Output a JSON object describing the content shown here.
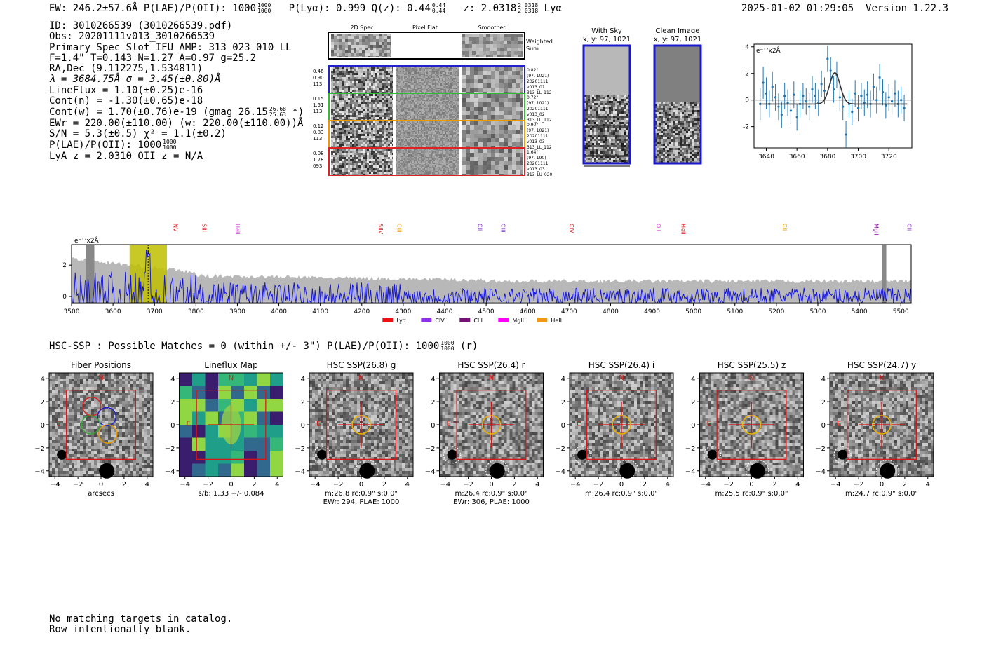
{
  "header": {
    "left_text": "EW: 246.2±57.6Å  P(LAE)/P(OII): 1000",
    "plae_frac": {
      "num": "1000",
      "den": "1000"
    },
    "plya_text": "P(Lyα): 0.999  Q(z): 0.44",
    "qz_frac": {
      "num": "0.44",
      "den": "0.44"
    },
    "z_text": "z: 2.0318",
    "z_frac": {
      "num": "2.0318",
      "den": "2.0318"
    },
    "line_name": "Lyα",
    "timestamp": "2025-01-02 01:29:05",
    "version": "Version 1.22.3"
  },
  "info": {
    "id": "ID: 3010266539 (3010266539.pdf)",
    "obs": "Obs: 20201111v013_3010266539",
    "primary": "Primary Spec_Slot_IFU_AMP: 313_023_010_LL",
    "fit": "F=1.4\"  T=0.143  N=1.27  A=0.97  g=25.2",
    "radec": "RA,Dec (9.112275,1.534811)",
    "lambda": "λ = 3684.75Å  σ = 3.45(±0.80)Å",
    "lineflux": "LineFlux = 1.10(±0.25)e-16",
    "contn": "Cont(n) = -1.30(±0.65)e-18",
    "contw": "Cont(w) = 1.70(±0.76)e-19 (gmag 26.15",
    "contw_frac": {
      "num": "26.68",
      "den": "25.63"
    },
    "contw_end": "*)",
    "ewr": "EWr = 220.00(±110.00) (w: 220.00(±110.00))Å",
    "sn": "S/N = 5.3(±0.5)  χ² = 1.1(±0.2)",
    "plae": "P(LAE)/P(OII): 1000",
    "plae_frac": {
      "num": "1000",
      "den": "1000"
    },
    "lya": "LyA z = 2.0310  OII z = N/A"
  },
  "spec2d": {
    "col_titles": [
      "2D Spec",
      "Pixel Flat",
      "Smoothed"
    ],
    "weighted_label": [
      "Weighted",
      "Sum"
    ],
    "rows": [
      {
        "left": [
          "0.46",
          "0.90",
          "113"
        ],
        "right": [
          "0.82\"",
          "(97, 1021)",
          "20201111",
          "v013_01",
          "313_LL_112"
        ],
        "color": "#2222cc"
      },
      {
        "left": [
          "0.15",
          "1.51",
          "113"
        ],
        "right": [
          "0.72\"",
          "(97, 1021)",
          "20201111",
          "v013_02",
          "313_LL_112"
        ],
        "color": "#33bb33"
      },
      {
        "left": [
          "0.12",
          "0.83",
          "113"
        ],
        "right": [
          "0.90\"",
          "(97, 1021)",
          "20201111",
          "v013_03",
          "313_LL_112"
        ],
        "color": "#ee9900"
      },
      {
        "left": [
          "0.08",
          "1.78",
          "093"
        ],
        "right": [
          "1.64\"",
          "(97, 190)",
          "20201111",
          "v013_03",
          "313_LU_020"
        ],
        "color": "#dd2222"
      }
    ]
  },
  "sky": {
    "with_sky_title": "With Sky",
    "with_sky_coords": "x, y: 97, 1021",
    "clean_title": "Clean Image",
    "clean_coords": "x, y: 97, 1021"
  },
  "line_fit": {
    "type": "scatter",
    "ylabel": "e⁻¹⁷x2Å",
    "xlim": [
      3632,
      3735
    ],
    "ylim": [
      -3.6,
      4.2
    ],
    "xticks": [
      3640,
      3660,
      3680,
      3700,
      3720
    ],
    "yticks": [
      -2,
      0,
      2,
      4
    ],
    "gaussian": {
      "center": 3684.75,
      "sigma": 3.45,
      "amplitude": 2.35,
      "baseline": -0.3
    },
    "points": [
      [
        3636,
        -0.3,
        1.2
      ],
      [
        3638,
        1.3,
        1.2
      ],
      [
        3640,
        0.5,
        1.2
      ],
      [
        3642,
        -0.3,
        1.0
      ],
      [
        3644,
        1.0,
        1.1
      ],
      [
        3646,
        0.2,
        1.0
      ],
      [
        3648,
        -0.5,
        1.0
      ],
      [
        3650,
        -1.1,
        1.0
      ],
      [
        3652,
        0.3,
        1.0
      ],
      [
        3654,
        -0.2,
        1.0
      ],
      [
        3656,
        -0.8,
        1.0
      ],
      [
        3658,
        0.4,
        1.0
      ],
      [
        3660,
        -1.3,
        1.0
      ],
      [
        3662,
        -0.3,
        1.0
      ],
      [
        3664,
        0.3,
        1.0
      ],
      [
        3666,
        -0.1,
        1.0
      ],
      [
        3668,
        -0.5,
        1.0
      ],
      [
        3670,
        0.8,
        1.0
      ],
      [
        3672,
        0.3,
        1.0
      ],
      [
        3674,
        -0.2,
        1.0
      ],
      [
        3676,
        1.2,
        1.0
      ],
      [
        3678,
        0.7,
        1.0
      ],
      [
        3680,
        3.1,
        1.0
      ],
      [
        3682,
        2.2,
        1.0
      ],
      [
        3684,
        0.8,
        1.0
      ],
      [
        3686,
        1.9,
        1.0
      ],
      [
        3688,
        0.2,
        1.0
      ],
      [
        3690,
        -0.5,
        1.0
      ],
      [
        3692,
        -2.6,
        1.0
      ],
      [
        3694,
        -0.3,
        1.0
      ],
      [
        3696,
        -0.9,
        1.0
      ],
      [
        3698,
        0.5,
        1.0
      ],
      [
        3700,
        -0.6,
        1.0
      ],
      [
        3702,
        0.3,
        1.0
      ],
      [
        3704,
        -0.2,
        1.0
      ],
      [
        3706,
        0.4,
        1.0
      ],
      [
        3708,
        -0.3,
        1.0
      ],
      [
        3710,
        1.0,
        1.0
      ],
      [
        3712,
        0.0,
        1.0
      ],
      [
        3714,
        1.7,
        1.0
      ],
      [
        3716,
        0.6,
        1.0
      ],
      [
        3718,
        -0.4,
        1.0
      ],
      [
        3720,
        0.2,
        1.0
      ],
      [
        3722,
        -0.1,
        1.0
      ],
      [
        3724,
        0.5,
        1.0
      ],
      [
        3726,
        -0.3,
        1.0
      ],
      [
        3728,
        0.0,
        1.0
      ],
      [
        3730,
        -0.6,
        1.0
      ]
    ]
  },
  "spectrum": {
    "type": "line",
    "ylabel": "e⁻¹⁷x2Å",
    "xlim": [
      3500,
      5525
    ],
    "ylim": [
      -0.4,
      3.3
    ],
    "xticks": [
      3500,
      3600,
      3700,
      3800,
      3900,
      4000,
      4100,
      4200,
      4300,
      4400,
      4500,
      4600,
      4700,
      4800,
      4900,
      5000,
      5100,
      5200,
      5300,
      5400,
      5500
    ],
    "yticks": [
      0,
      2
    ],
    "highlight_range": [
      3640,
      3730
    ],
    "line_center": 3684.75,
    "masked_ranges": [
      [
        3535,
        3555
      ],
      [
        5455,
        5465
      ]
    ],
    "line_markers": [
      {
        "label": "NV",
        "wave": 3750,
        "color": "#dd2222"
      },
      {
        "label": "SiII",
        "wave": 3820,
        "color": "#dd2222"
      },
      {
        "label": "HeII",
        "wave": 3900,
        "color": "#cc44cc"
      },
      {
        "label": "SiIV",
        "wave": 4245,
        "color": "#dd2222"
      },
      {
        "label": "CIII",
        "wave": 4290,
        "color": "#ee9900"
      },
      {
        "label": "CII",
        "wave": 4485,
        "color": "#8833cc"
      },
      {
        "label": "CIII",
        "wave": 4540,
        "color": "#8833cc"
      },
      {
        "label": "CIV",
        "wave": 4705,
        "color": "#dd2222"
      },
      {
        "label": "OII",
        "wave": 4915,
        "color": "#dd44dd"
      },
      {
        "label": "HeII",
        "wave": 4975,
        "color": "#dd2222"
      },
      {
        "label": "CII",
        "wave": 5220,
        "color": "#ee9900"
      },
      {
        "label": "MgII",
        "wave": 5440,
        "color": "#8800aa"
      },
      {
        "label": "CII",
        "wave": 5520,
        "color": "#8833cc"
      }
    ],
    "legend": [
      {
        "label": "Lyα",
        "color": "#ee1111"
      },
      {
        "label": "CIV",
        "color": "#8833ee"
      },
      {
        "label": "CIII",
        "color": "#771177"
      },
      {
        "label": "MgII",
        "color": "#ff00ff"
      },
      {
        "label": "HeII",
        "color": "#ee9911"
      }
    ]
  },
  "hsc_summary": {
    "text": "HSC-SSP : Possible Matches = 0 (within +/- 3\")  P(LAE)/P(OII): 1000",
    "frac": {
      "num": "1000",
      "den": "1000"
    },
    "end": "(r)"
  },
  "cutouts": [
    {
      "title": "Fiber Positions",
      "caption1": "arcsecs",
      "caption2": "",
      "kind": "fiber"
    },
    {
      "title": "Lineflux Map",
      "caption1": "s/b: 1.33 +/- 0.084",
      "caption2": "",
      "kind": "flux"
    },
    {
      "title": "HSC SSP(26.8) g",
      "caption1": "m:26.8 rc:0.9\"  s:0.0\"",
      "caption2": "EWr: 294, PLAE: 1000",
      "kind": "hsc"
    },
    {
      "title": "HSC SSP(26.4) r",
      "caption1": "m:26.4 rc:0.9\"  s:0.0\"",
      "caption2": "EWr: 306, PLAE: 1000",
      "kind": "hsc"
    },
    {
      "title": "HSC SSP(26.4) i",
      "caption1": "m:26.4 rc:0.9\"  s:0.0\"",
      "caption2": "",
      "kind": "hsc"
    },
    {
      "title": "HSC SSP(25.5) z",
      "caption1": "m:25.5 rc:0.9\"  s:0.0\"",
      "caption2": "",
      "kind": "hsc"
    },
    {
      "title": "HSC SSP(24.7) y",
      "caption1": "m:24.7 rc:0.9\"  s:0.0\"",
      "caption2": "",
      "kind": "hsc"
    }
  ],
  "cutout_axes": {
    "ticks": [
      -4,
      -2,
      0,
      2,
      4
    ],
    "north": "N",
    "east": "E"
  },
  "footer": {
    "line1": "No matching targets in catalog.",
    "line2": "Row intentionally blank."
  }
}
